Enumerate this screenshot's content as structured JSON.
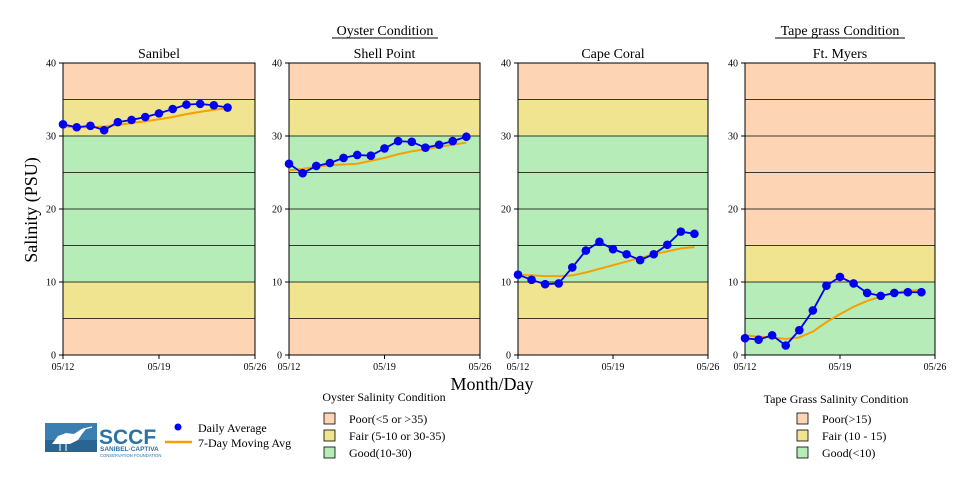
{
  "figure": {
    "ylabel": "Salinity (PSU)",
    "xlabel": "Month/Day",
    "group_titles": [
      {
        "text": "Oyster Condition"
      },
      {
        "text": "Tape grass Condition"
      }
    ]
  },
  "colors": {
    "poor": "#fdd5b4",
    "fair": "#f0e491",
    "good": "#b5ecb8",
    "daily": "#0000ee",
    "avg": "#f5a000",
    "grid": "#000000"
  },
  "chart_data": [
    {
      "type": "line",
      "title": "Sanibel",
      "ylim": [
        0,
        40
      ],
      "yticks": [
        0,
        10,
        20,
        30,
        40
      ],
      "xticks": [
        "05/12",
        "05/19",
        "05/26"
      ],
      "xrange_days": [
        0,
        14
      ],
      "bands": [
        {
          "from": 0,
          "to": 5,
          "condition": "poor"
        },
        {
          "from": 5,
          "to": 10,
          "condition": "fair"
        },
        {
          "from": 10,
          "to": 30,
          "condition": "good"
        },
        {
          "from": 30,
          "to": 35,
          "condition": "fair"
        },
        {
          "from": 35,
          "to": 40,
          "condition": "poor"
        }
      ],
      "series": [
        {
          "name": "Daily Average",
          "x": [
            0,
            1,
            2,
            3,
            4,
            5,
            6,
            7,
            8,
            9,
            10,
            11,
            12
          ],
          "values": [
            31.6,
            31.2,
            31.4,
            30.8,
            31.9,
            32.2,
            32.6,
            33.1,
            33.7,
            34.3,
            34.4,
            34.2,
            33.9
          ]
        },
        {
          "name": "7-Day Moving Avg",
          "x": [
            0,
            1,
            2,
            3,
            4,
            5,
            6,
            7,
            8,
            9,
            10,
            11,
            12
          ],
          "values": [
            31.3,
            31.2,
            31.2,
            31.3,
            31.5,
            31.8,
            32.0,
            32.3,
            32.6,
            33.0,
            33.3,
            33.6,
            33.8
          ]
        }
      ]
    },
    {
      "type": "line",
      "title": "Shell Point",
      "ylim": [
        0,
        40
      ],
      "yticks": [
        0,
        10,
        20,
        30,
        40
      ],
      "xticks": [
        "05/12",
        "05/19",
        "05/26"
      ],
      "xrange_days": [
        0,
        14
      ],
      "bands": [
        {
          "from": 0,
          "to": 5,
          "condition": "poor"
        },
        {
          "from": 5,
          "to": 10,
          "condition": "fair"
        },
        {
          "from": 10,
          "to": 30,
          "condition": "good"
        },
        {
          "from": 30,
          "to": 35,
          "condition": "fair"
        },
        {
          "from": 35,
          "to": 40,
          "condition": "poor"
        }
      ],
      "series": [
        {
          "name": "Daily Average",
          "x": [
            0,
            1,
            2,
            3,
            4,
            5,
            6,
            7,
            8,
            9,
            10,
            11,
            12,
            13
          ],
          "values": [
            26.2,
            24.9,
            25.9,
            26.3,
            27.0,
            27.4,
            27.3,
            28.3,
            29.3,
            29.2,
            28.4,
            28.8,
            29.3,
            29.9
          ]
        },
        {
          "name": "7-Day Moving Avg",
          "x": [
            0,
            1,
            2,
            3,
            4,
            5,
            6,
            7,
            8,
            9,
            10,
            11,
            12,
            13
          ],
          "values": [
            25.3,
            25.5,
            25.8,
            26.0,
            26.1,
            26.2,
            26.6,
            27.0,
            27.5,
            27.9,
            28.2,
            28.5,
            28.8,
            29.1
          ]
        }
      ]
    },
    {
      "type": "line",
      "title": "Cape Coral",
      "ylim": [
        0,
        40
      ],
      "yticks": [
        0,
        10,
        20,
        30,
        40
      ],
      "xticks": [
        "05/12",
        "05/19",
        "05/26"
      ],
      "xrange_days": [
        0,
        14
      ],
      "bands": [
        {
          "from": 0,
          "to": 5,
          "condition": "poor"
        },
        {
          "from": 5,
          "to": 10,
          "condition": "fair"
        },
        {
          "from": 10,
          "to": 30,
          "condition": "good"
        },
        {
          "from": 30,
          "to": 35,
          "condition": "fair"
        },
        {
          "from": 35,
          "to": 40,
          "condition": "poor"
        }
      ],
      "series": [
        {
          "name": "Daily Average",
          "x": [
            0,
            1,
            2,
            3,
            4,
            5,
            6,
            7,
            8,
            9,
            10,
            11,
            12,
            13
          ],
          "values": [
            11.0,
            10.3,
            9.7,
            9.8,
            12.0,
            14.3,
            15.5,
            14.5,
            13.8,
            13.0,
            13.8,
            15.1,
            16.9,
            16.6
          ]
        },
        {
          "name": "7-Day Moving Avg",
          "x": [
            0,
            1,
            2,
            3,
            4,
            5,
            6,
            7,
            8,
            9,
            10,
            11,
            12,
            13
          ],
          "values": [
            11.0,
            10.9,
            10.8,
            10.8,
            10.9,
            11.3,
            11.8,
            12.3,
            12.8,
            13.3,
            13.8,
            14.2,
            14.6,
            14.8
          ]
        }
      ]
    },
    {
      "type": "line",
      "title": "Ft. Myers",
      "ylim": [
        0,
        40
      ],
      "yticks": [
        0,
        10,
        20,
        30,
        40
      ],
      "xticks": [
        "05/12",
        "05/19",
        "05/26"
      ],
      "xrange_days": [
        0,
        14
      ],
      "bands": [
        {
          "from": 0,
          "to": 10,
          "condition": "good"
        },
        {
          "from": 10,
          "to": 15,
          "condition": "fair"
        },
        {
          "from": 15,
          "to": 40,
          "condition": "poor"
        }
      ],
      "hlines": [
        5,
        10,
        15,
        20,
        25,
        30,
        35
      ],
      "series": [
        {
          "name": "Daily Average",
          "x": [
            0,
            1,
            2,
            3,
            4,
            5,
            6,
            7,
            8,
            9,
            10,
            11,
            12,
            13
          ],
          "values": [
            2.3,
            2.1,
            2.7,
            1.3,
            3.4,
            6.1,
            9.5,
            10.7,
            9.8,
            8.5,
            8.1,
            8.5,
            8.6,
            8.6
          ]
        },
        {
          "name": "7-Day Moving Avg",
          "x": [
            0,
            1,
            2,
            3,
            4,
            5,
            6,
            7,
            8,
            9,
            10,
            11,
            12,
            13
          ],
          "values": [
            2.7,
            2.5,
            2.4,
            2.2,
            2.4,
            3.2,
            4.5,
            5.6,
            6.6,
            7.4,
            8.0,
            8.5,
            8.8,
            8.9
          ]
        }
      ]
    }
  ],
  "legend": {
    "series": [
      {
        "label": "Daily Average"
      },
      {
        "label": "7-Day Moving Avg"
      }
    ],
    "oyster": {
      "title": "Oyster Salinity Condition",
      "items": [
        {
          "label": "Poor(<5 or >35)",
          "condition": "poor"
        },
        {
          "label": "Fair (5-10 or 30-35)",
          "condition": "fair"
        },
        {
          "label": "Good(10-30)",
          "condition": "good"
        }
      ]
    },
    "tape": {
      "title": "Tape Grass Salinity Condition",
      "items": [
        {
          "label": "Poor(>15)",
          "condition": "poor"
        },
        {
          "label": "Fair (10 - 15)",
          "condition": "fair"
        },
        {
          "label": "Good(<10)",
          "condition": "good"
        }
      ]
    }
  },
  "logo": {
    "name": "SCCF",
    "line1": "SANIBEL-CAPTIVA",
    "line2": "CONSERVATION FOUNDATION",
    "icon": "bird-wetland-icon"
  }
}
